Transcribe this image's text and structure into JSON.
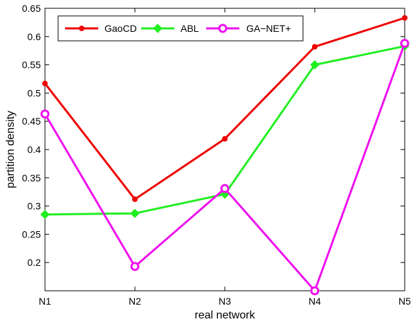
{
  "chart_data": {
    "type": "line",
    "title": "",
    "xlabel": "real network",
    "ylabel": "partition density",
    "categories": [
      "N1",
      "N2",
      "N3",
      "N4",
      "N5"
    ],
    "ylim": [
      0.15,
      0.65
    ],
    "yticks": [
      "0.2",
      "0.25",
      "0.3",
      "0.35",
      "0.4",
      "0.45",
      "0.5",
      "0.55",
      "0.6",
      "0.65"
    ],
    "ytick_values": [
      0.2,
      0.25,
      0.3,
      0.35,
      0.4,
      0.45,
      0.5,
      0.55,
      0.6,
      0.65
    ],
    "grid": false,
    "legend_position": "top-left",
    "series": [
      {
        "name": "GaoCD",
        "color": "#ee0000",
        "marker": "dot",
        "values": [
          0.517,
          0.312,
          0.419,
          0.582,
          0.633
        ]
      },
      {
        "name": "ABL",
        "color": "#22ee22",
        "marker": "diamond",
        "values": [
          0.285,
          0.287,
          0.321,
          0.55,
          0.583
        ]
      },
      {
        "name": "GA−NET+",
        "color": "#ee11ee",
        "marker": "circle",
        "values": [
          0.463,
          0.193,
          0.331,
          0.15,
          0.588
        ]
      }
    ]
  }
}
